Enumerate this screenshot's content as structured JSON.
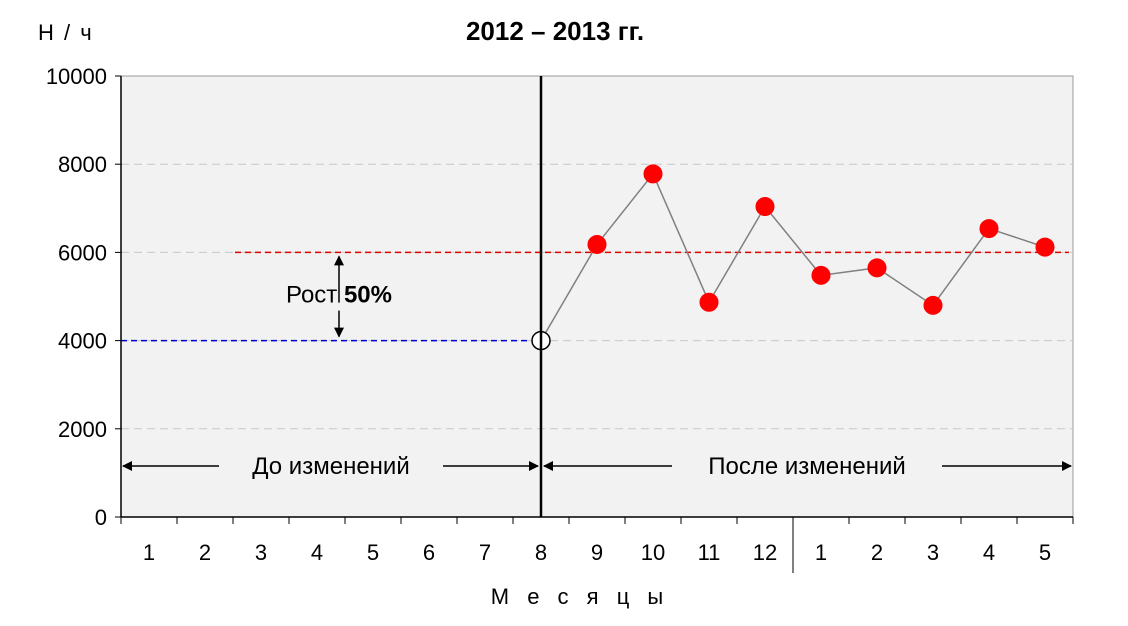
{
  "chart_data": {
    "type": "line",
    "title": "2012 – 2013 гг.",
    "ylabel": "Н / ч",
    "xlabel": "М е с я ц ы",
    "ylim": [
      0,
      10000
    ],
    "yticks": [
      0,
      2000,
      4000,
      6000,
      8000,
      10000
    ],
    "categories": [
      "1",
      "2",
      "3",
      "4",
      "5",
      "6",
      "7",
      "8",
      "9",
      "10",
      "11",
      "12",
      "1",
      "2",
      "3",
      "4",
      "5"
    ],
    "grid": true,
    "series": [
      {
        "values": [
          null,
          null,
          null,
          null,
          null,
          null,
          null,
          4000,
          6180,
          7780,
          4870,
          7040,
          5480,
          5650,
          4800,
          6540,
          6120
        ],
        "color": "#ff0000",
        "line_color": "#808080",
        "baseline_point_fill": "#ffffff"
      }
    ],
    "reference_lines": [
      {
        "value": 4000,
        "from_index": 0,
        "to_index": 7,
        "color": "#0000cc",
        "style": "dashed"
      },
      {
        "value": 6000,
        "from_index": 2,
        "to_index": 16,
        "color": "#dd0000",
        "style": "dashed"
      }
    ],
    "change_after_index": 7,
    "year_divider_after_index": 11,
    "annotations": {
      "before_label": "До изменений",
      "after_label": "После изменений",
      "growth_prefix": "Рост ",
      "growth_value": "50%"
    }
  },
  "colors": {
    "plot_background": "#f2f2f2",
    "grid": "#c8c8c8",
    "axis": "#000000"
  }
}
